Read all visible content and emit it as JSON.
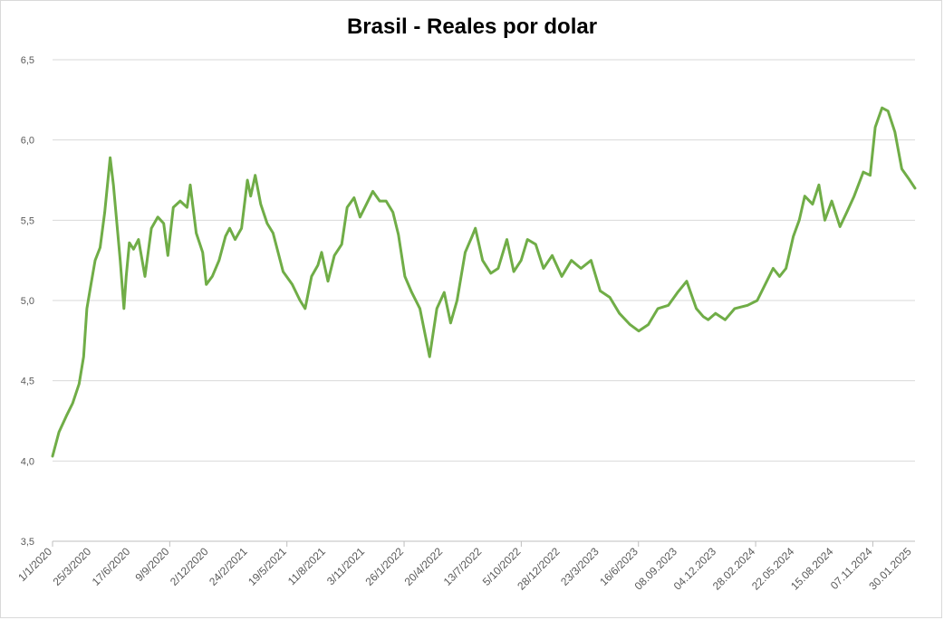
{
  "chart_data": {
    "type": "line",
    "title": "Brasil - Reales por dolar",
    "xlabel": "",
    "ylabel": "",
    "ylim": [
      3.5,
      6.5
    ],
    "yticks": [
      3.5,
      4.0,
      4.5,
      5.0,
      5.5,
      6.0,
      6.5
    ],
    "ytick_labels": [
      "3,5",
      "4,0",
      "4,5",
      "5,0",
      "5,5",
      "6,0",
      "6,5"
    ],
    "xtick_labels": [
      "1/1/2020",
      "25/3/2020",
      "17/6/2020",
      "9/9/2020",
      "2/12/2020",
      "24/2/2021",
      "19/5/2021",
      "11/8/2021",
      "3/11/2021",
      "26/1/2022",
      "20/4/2022",
      "13/7/2022",
      "5/10/2022",
      "28/12/2022",
      "23/3/2023",
      "16/6/2023",
      "08.09.2023",
      "04.12.2023",
      "28.02.2024",
      "22.05.2024",
      "15.08.2024",
      "07.11.2024",
      "30.01.2025"
    ],
    "grid": true,
    "legend": "none",
    "line_color": "#70ad47",
    "series": [
      {
        "x": [
          "2020-01-01",
          "2020-01-15",
          "2020-01-31",
          "2020-02-14",
          "2020-02-28",
          "2020-03-09",
          "2020-03-16",
          "2020-03-25",
          "2020-04-03",
          "2020-04-14",
          "2020-04-24",
          "2020-05-06",
          "2020-05-13",
          "2020-05-20",
          "2020-05-28",
          "2020-06-05",
          "2020-06-10",
          "2020-06-17",
          "2020-06-26",
          "2020-07-07",
          "2020-07-21",
          "2020-08-04",
          "2020-08-18",
          "2020-08-31",
          "2020-09-09",
          "2020-09-21",
          "2020-10-06",
          "2020-10-21",
          "2020-10-28",
          "2020-11-10",
          "2020-11-24",
          "2020-12-02",
          "2020-12-15",
          "2020-12-30",
          "2021-01-13",
          "2021-01-22",
          "2021-02-03",
          "2021-02-17",
          "2021-03-02",
          "2021-03-09",
          "2021-03-19",
          "2021-03-31",
          "2021-04-14",
          "2021-04-27",
          "2021-05-19",
          "2021-06-08",
          "2021-06-25",
          "2021-07-06",
          "2021-07-20",
          "2021-08-03",
          "2021-08-11",
          "2021-08-25",
          "2021-09-08",
          "2021-09-24",
          "2021-10-06",
          "2021-10-21",
          "2021-11-03",
          "2021-11-17",
          "2021-12-01",
          "2021-12-16",
          "2021-12-30",
          "2022-01-14",
          "2022-01-26",
          "2022-02-09",
          "2022-02-24",
          "2022-03-14",
          "2022-03-28",
          "2022-04-04",
          "2022-04-20",
          "2022-05-06",
          "2022-05-20",
          "2022-06-03",
          "2022-06-21",
          "2022-07-06",
          "2022-07-13",
          "2022-07-29",
          "2022-08-16",
          "2022-09-01",
          "2022-09-20",
          "2022-10-05",
          "2022-10-21",
          "2022-11-04",
          "2022-11-22",
          "2022-12-09",
          "2022-12-28",
          "2023-01-18",
          "2023-02-08",
          "2023-03-01",
          "2023-03-23",
          "2023-04-12",
          "2023-05-03",
          "2023-05-24",
          "2023-06-16",
          "2023-07-05",
          "2023-07-26",
          "2023-08-16",
          "2023-09-08",
          "2023-09-28",
          "2023-10-18",
          "2023-11-08",
          "2023-11-23",
          "2023-12-04",
          "2023-12-20",
          "2024-01-10",
          "2024-01-31",
          "2024-02-28",
          "2024-03-20",
          "2024-04-10",
          "2024-04-24",
          "2024-05-08",
          "2024-05-22",
          "2024-06-07",
          "2024-06-20",
          "2024-07-02",
          "2024-07-19",
          "2024-08-02",
          "2024-08-15",
          "2024-08-30",
          "2024-09-17",
          "2024-10-02",
          "2024-10-18",
          "2024-11-07",
          "2024-11-22",
          "2024-12-03",
          "2024-12-18",
          "2024-12-31",
          "2025-01-15",
          "2025-01-30",
          "2025-02-14",
          "2025-02-28"
        ],
        "y": [
          4.03,
          4.18,
          4.28,
          4.36,
          4.48,
          4.65,
          4.95,
          5.1,
          5.25,
          5.33,
          5.55,
          5.89,
          5.72,
          5.5,
          5.25,
          4.95,
          5.15,
          5.36,
          5.32,
          5.38,
          5.15,
          5.45,
          5.52,
          5.48,
          5.28,
          5.58,
          5.62,
          5.58,
          5.72,
          5.42,
          5.3,
          5.1,
          5.15,
          5.25,
          5.4,
          5.45,
          5.38,
          5.45,
          5.75,
          5.65,
          5.78,
          5.6,
          5.48,
          5.42,
          5.18,
          5.1,
          5.0,
          4.95,
          5.15,
          5.22,
          5.3,
          5.12,
          5.28,
          5.35,
          5.58,
          5.64,
          5.52,
          5.6,
          5.68,
          5.62,
          5.62,
          5.55,
          5.41,
          5.15,
          5.05,
          4.95,
          4.75,
          4.65,
          4.95,
          5.05,
          4.86,
          5.0,
          5.3,
          5.4,
          5.45,
          5.25,
          5.17,
          5.2,
          5.38,
          5.18,
          5.25,
          5.38,
          5.35,
          5.2,
          5.28,
          5.15,
          5.25,
          5.2,
          5.25,
          5.06,
          5.02,
          4.92,
          4.85,
          4.81,
          4.85,
          4.95,
          4.97,
          5.05,
          5.12,
          4.95,
          4.9,
          4.88,
          4.92,
          4.88,
          4.95,
          4.97,
          5.0,
          5.12,
          5.2,
          5.15,
          5.2,
          5.4,
          5.5,
          5.65,
          5.6,
          5.72,
          5.5,
          5.62,
          5.46,
          5.55,
          5.65,
          5.8,
          5.78,
          6.08,
          6.2,
          6.18,
          6.05,
          5.82,
          5.76,
          5.7
        ]
      }
    ]
  }
}
